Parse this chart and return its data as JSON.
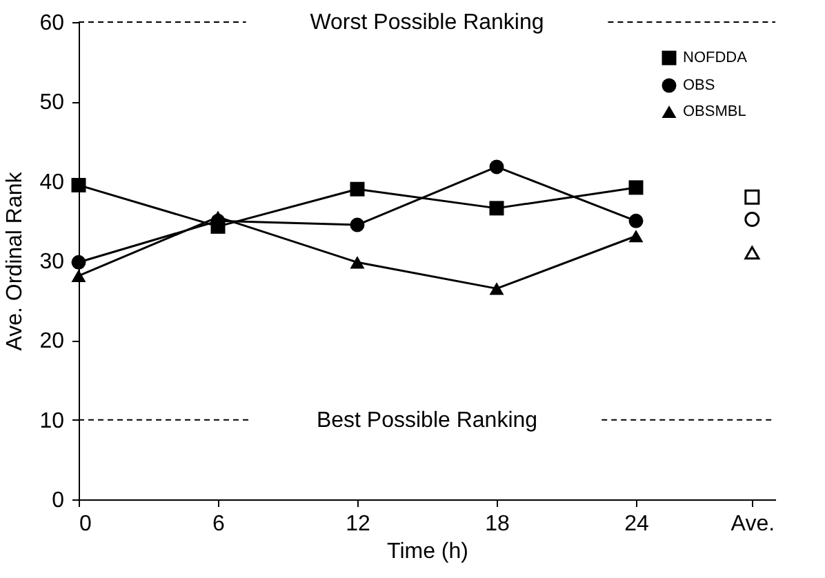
{
  "chart_data": {
    "type": "line",
    "xlabel": "Time (h)",
    "ylabel": "Ave. Ordinal Rank",
    "xlim": [
      0,
      30
    ],
    "xticks": [
      0,
      6,
      12,
      18,
      24,
      {
        "value": 29,
        "label": "Ave."
      }
    ],
    "ylim": [
      0,
      60
    ],
    "yticks": [
      0,
      10,
      20,
      30,
      40,
      50,
      60
    ],
    "grid": false,
    "legend": "top right",
    "line_style": "solid",
    "series": [
      {
        "name": "NOFDDA",
        "color": "#000000",
        "marker": "square",
        "x": [
          0,
          6,
          12,
          18,
          24
        ],
        "values": [
          39.5,
          34.3,
          39.0,
          36.6,
          39.2
        ]
      },
      {
        "name": "OBS",
        "color": "#000000",
        "marker": "circle",
        "x": [
          0,
          6,
          12,
          18,
          24
        ],
        "values": [
          29.8,
          35.0,
          34.5,
          41.8,
          35.0
        ]
      },
      {
        "name": "OBSMBL",
        "color": "#000000",
        "marker": "triangle",
        "x": [
          0,
          6,
          12,
          18,
          24
        ],
        "values": [
          28.1,
          35.5,
          29.8,
          26.5,
          33.1
        ]
      },
      {
        "type": "scatter",
        "color": "#000000",
        "marker": "square",
        "x": [
          29
        ],
        "values": [
          38.0
        ]
      },
      {
        "type": "scatter",
        "color": "#000000",
        "marker": "circle",
        "x": [
          29
        ],
        "values": [
          35.2
        ]
      },
      {
        "type": "scatter",
        "color": "#000000",
        "marker": "triangle",
        "x": [
          29
        ],
        "values": [
          31.0
        ]
      }
    ],
    "ref_lines": [
      {
        "axis": "y",
        "value": 60,
        "label": "Worst Possible Ranking",
        "line_style": "dashed"
      },
      {
        "axis": "y",
        "value": 10,
        "label": "Best Possible Ranking",
        "line_style": "dashed"
      }
    ]
  }
}
